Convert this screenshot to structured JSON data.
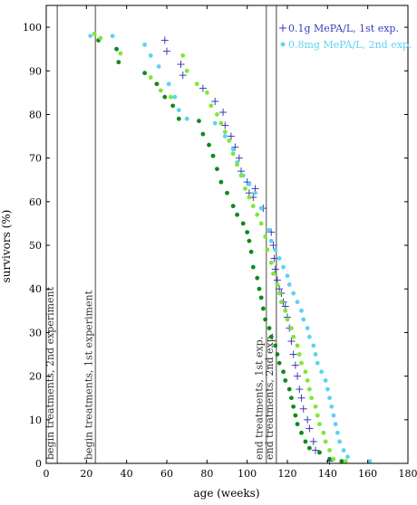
{
  "chart_data": {
    "type": "scatter",
    "xlabel": "age (weeks)",
    "ylabel": "survivors (%)",
    "xlim": [
      0,
      180
    ],
    "ylim": [
      0,
      105
    ],
    "xticks": [
      0,
      20,
      40,
      60,
      80,
      100,
      120,
      140,
      160,
      180
    ],
    "yticks": [
      0,
      10,
      20,
      30,
      40,
      50,
      60,
      70,
      80,
      90,
      100
    ],
    "grid": false,
    "legend_position": "top-right",
    "vertical_lines": [
      {
        "x": 5.5,
        "label": "begin treatments, 2nd experiment",
        "color": "#8a8a8a"
      },
      {
        "x": 24.5,
        "label": "begin treatments, 1st experiment",
        "color": "#8a8a8a"
      },
      {
        "x": 109.5,
        "label": "end treatments, 1st exp.",
        "color": "#8a8a8a"
      },
      {
        "x": 114.5,
        "label": "end treatments, 2nd exp.",
        "color": "#8a8a8a"
      }
    ],
    "series": [
      {
        "name": "0.1g MePA/L, 1st exp.",
        "marker": "plus",
        "color": "#3b3bb8",
        "points": [
          [
            59,
            97
          ],
          [
            60,
            94.5
          ],
          [
            67,
            91.5
          ],
          [
            68,
            89
          ],
          [
            78,
            86
          ],
          [
            84,
            83
          ],
          [
            88,
            80.5
          ],
          [
            89,
            77.5
          ],
          [
            92,
            75
          ],
          [
            94,
            72.5
          ],
          [
            96,
            70
          ],
          [
            97,
            67
          ],
          [
            100,
            64.5
          ],
          [
            101,
            62
          ],
          [
            103,
            61
          ],
          [
            104,
            63
          ],
          [
            108,
            58.5
          ],
          [
            112,
            53
          ],
          [
            113,
            50
          ],
          [
            113.5,
            47
          ],
          [
            114,
            44.5
          ],
          [
            115,
            42
          ],
          [
            116,
            40
          ],
          [
            117,
            39
          ],
          [
            118,
            37
          ],
          [
            119,
            36
          ],
          [
            120,
            33.5
          ],
          [
            121,
            31
          ],
          [
            122,
            28
          ],
          [
            123,
            25
          ],
          [
            124,
            22.5
          ],
          [
            125,
            20
          ],
          [
            126,
            17
          ],
          [
            127,
            15
          ],
          [
            128,
            12.5
          ],
          [
            130,
            10
          ],
          [
            131,
            8
          ],
          [
            133,
            5
          ],
          [
            134,
            3
          ],
          [
            141,
            0.5
          ]
        ]
      },
      {
        "name": "0.8mg MePA/L, 2nd exp.",
        "marker": "dot",
        "color": "#5cd3f0",
        "points": [
          [
            22,
            98
          ],
          [
            33,
            98
          ],
          [
            49,
            96
          ],
          [
            52,
            93.5
          ],
          [
            56,
            91
          ],
          [
            61,
            87
          ],
          [
            64,
            84
          ],
          [
            66,
            81
          ],
          [
            70,
            79
          ],
          [
            84,
            78
          ],
          [
            89,
            75
          ],
          [
            93,
            72
          ],
          [
            95,
            69
          ],
          [
            98,
            66
          ],
          [
            101,
            64
          ],
          [
            104,
            62
          ],
          [
            107,
            58.5
          ],
          [
            111,
            53.5
          ],
          [
            112,
            51
          ],
          [
            114,
            49
          ],
          [
            116,
            47
          ],
          [
            118,
            45
          ],
          [
            120,
            43
          ],
          [
            121,
            41
          ],
          [
            123,
            39
          ],
          [
            125,
            37
          ],
          [
            127,
            35
          ],
          [
            128,
            33
          ],
          [
            130,
            31
          ],
          [
            131,
            29
          ],
          [
            133,
            27
          ],
          [
            134,
            25
          ],
          [
            135,
            23
          ],
          [
            137,
            21
          ],
          [
            139,
            19
          ],
          [
            140,
            17
          ],
          [
            141,
            15
          ],
          [
            142,
            13
          ],
          [
            143,
            11
          ],
          [
            144,
            9
          ],
          [
            145,
            7
          ],
          [
            146,
            5
          ],
          [
            148,
            3
          ],
          [
            150,
            1.5
          ],
          [
            161,
            0.5
          ]
        ]
      },
      {
        "name": "",
        "marker": "dot",
        "color": "#0e8a1a",
        "points": [
          [
            26,
            97
          ],
          [
            35,
            95
          ],
          [
            36,
            92
          ],
          [
            49,
            89.5
          ],
          [
            55,
            87
          ],
          [
            59,
            84
          ],
          [
            63,
            82
          ],
          [
            66,
            79
          ],
          [
            76,
            78.5
          ],
          [
            78,
            75.5
          ],
          [
            81,
            73
          ],
          [
            83,
            70.5
          ],
          [
            85,
            67.5
          ],
          [
            87,
            64.5
          ],
          [
            90,
            62
          ],
          [
            93,
            59
          ],
          [
            95,
            57
          ],
          [
            98,
            55
          ],
          [
            100,
            53
          ],
          [
            101,
            51
          ],
          [
            102,
            48.5
          ],
          [
            103,
            45
          ],
          [
            105,
            42.5
          ],
          [
            106,
            40
          ],
          [
            107,
            38
          ],
          [
            108,
            35.5
          ],
          [
            109,
            33
          ],
          [
            111,
            31
          ],
          [
            112,
            29
          ],
          [
            114,
            27
          ],
          [
            115,
            25
          ],
          [
            116,
            23
          ],
          [
            118,
            21
          ],
          [
            119,
            19
          ],
          [
            121,
            17
          ],
          [
            122,
            15
          ],
          [
            123,
            13
          ],
          [
            124,
            11
          ],
          [
            125,
            9
          ],
          [
            127,
            7
          ],
          [
            129,
            5
          ],
          [
            131,
            3.5
          ],
          [
            136,
            2.5
          ],
          [
            141,
            1
          ],
          [
            147,
            0.5
          ]
        ]
      },
      {
        "name": "",
        "marker": "dot",
        "color": "#7ee834",
        "points": [
          [
            24,
            98.5
          ],
          [
            27,
            97.5
          ],
          [
            37,
            94
          ],
          [
            52,
            88.5
          ],
          [
            57,
            85.5
          ],
          [
            62,
            84
          ],
          [
            68,
            93.5
          ],
          [
            70,
            90
          ],
          [
            75,
            87
          ],
          [
            80,
            85
          ],
          [
            82,
            82
          ],
          [
            85,
            80
          ],
          [
            87,
            78
          ],
          [
            89,
            76
          ],
          [
            91,
            74
          ],
          [
            93,
            71
          ],
          [
            95,
            68.5
          ],
          [
            97,
            66
          ],
          [
            99,
            63
          ],
          [
            101,
            61
          ],
          [
            103,
            59
          ],
          [
            105,
            57
          ],
          [
            107,
            55
          ],
          [
            109,
            52
          ],
          [
            110,
            49
          ],
          [
            112,
            46
          ],
          [
            113,
            43.5
          ],
          [
            115,
            41
          ],
          [
            116,
            39
          ],
          [
            117,
            37
          ],
          [
            119,
            35
          ],
          [
            120,
            33
          ],
          [
            122,
            31
          ],
          [
            123,
            29
          ],
          [
            125,
            27
          ],
          [
            126,
            25
          ],
          [
            127,
            23
          ],
          [
            129,
            21
          ],
          [
            130,
            19
          ],
          [
            131,
            17
          ],
          [
            132,
            15
          ],
          [
            134,
            13
          ],
          [
            135,
            11
          ],
          [
            136,
            9
          ],
          [
            138,
            7
          ],
          [
            139,
            5
          ],
          [
            141,
            3
          ],
          [
            143,
            1
          ],
          [
            149,
            0.5
          ]
        ]
      }
    ]
  }
}
